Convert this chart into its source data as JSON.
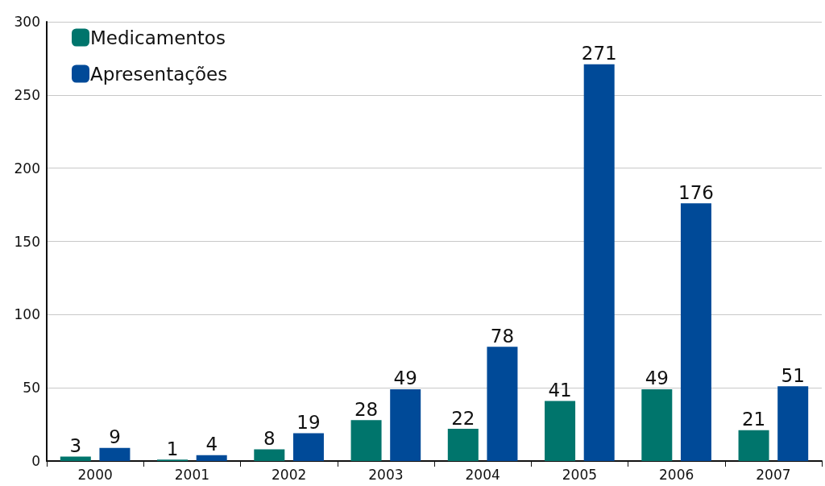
{
  "chart_data": {
    "type": "bar",
    "categories": [
      "2000",
      "2001",
      "2002",
      "2003",
      "2004",
      "2005",
      "2006",
      "2007"
    ],
    "series": [
      {
        "name": "Medicamentos",
        "color": "#00756c",
        "values": [
          3,
          1,
          8,
          28,
          22,
          41,
          49,
          21
        ]
      },
      {
        "name": "Apresentações",
        "color": "#004a98",
        "values": [
          9,
          4,
          19,
          49,
          78,
          271,
          176,
          51
        ]
      }
    ],
    "ylim": [
      0,
      300
    ],
    "yticks": [
      0,
      50,
      100,
      150,
      200,
      250,
      300
    ],
    "grid": "y",
    "legend": "top left",
    "data_labels": true
  }
}
